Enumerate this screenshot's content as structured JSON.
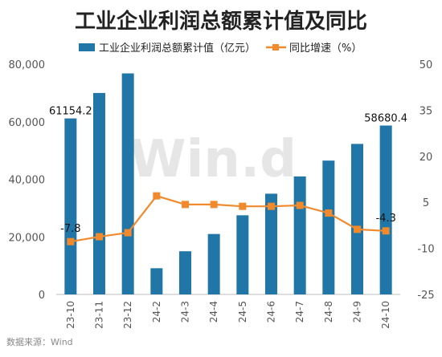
{
  "chart_data": {
    "type": "bar+line",
    "title": "工业企业利润总额累计值及同比",
    "categories": [
      "23-10",
      "23-11",
      "23-12",
      "24-2",
      "24-3",
      "24-4",
      "24-5",
      "24-6",
      "24-7",
      "24-8",
      "24-9",
      "24-10"
    ],
    "series": [
      {
        "name": "工业企业利润总额累计值（亿元）",
        "type": "bar",
        "axis": "left",
        "color": "#2176a8",
        "values": [
          61154.2,
          70000,
          76800,
          9100,
          15000,
          21000,
          27500,
          35000,
          41000,
          46500,
          52300,
          58680.4
        ]
      },
      {
        "name": "同比增速（%）",
        "type": "line",
        "axis": "right",
        "color": "#f08a2c",
        "values": [
          -7.8,
          -6.2,
          -4.9,
          7.1,
          4.3,
          4.3,
          3.7,
          3.7,
          4.0,
          1.5,
          -3.8,
          -4.3
        ]
      }
    ],
    "ylim_left": [
      0,
      80000
    ],
    "ylim_right": [
      -25,
      50
    ],
    "yticks_left": [
      "0",
      "20,000",
      "40,000",
      "60,000",
      "80,000"
    ],
    "yticks_right": [
      "-25",
      "-10",
      "5",
      "20",
      "35",
      "50"
    ],
    "data_labels": [
      {
        "series": 0,
        "index": 0,
        "text": "61154.2"
      },
      {
        "series": 0,
        "index": 11,
        "text": "58680.4"
      },
      {
        "series": 1,
        "index": 0,
        "text": "-7.8"
      },
      {
        "series": 1,
        "index": 11,
        "text": "-4.3"
      }
    ],
    "legend_position": "top",
    "grid": false
  },
  "watermark": "Win.d",
  "source": "数据来源：Wind"
}
